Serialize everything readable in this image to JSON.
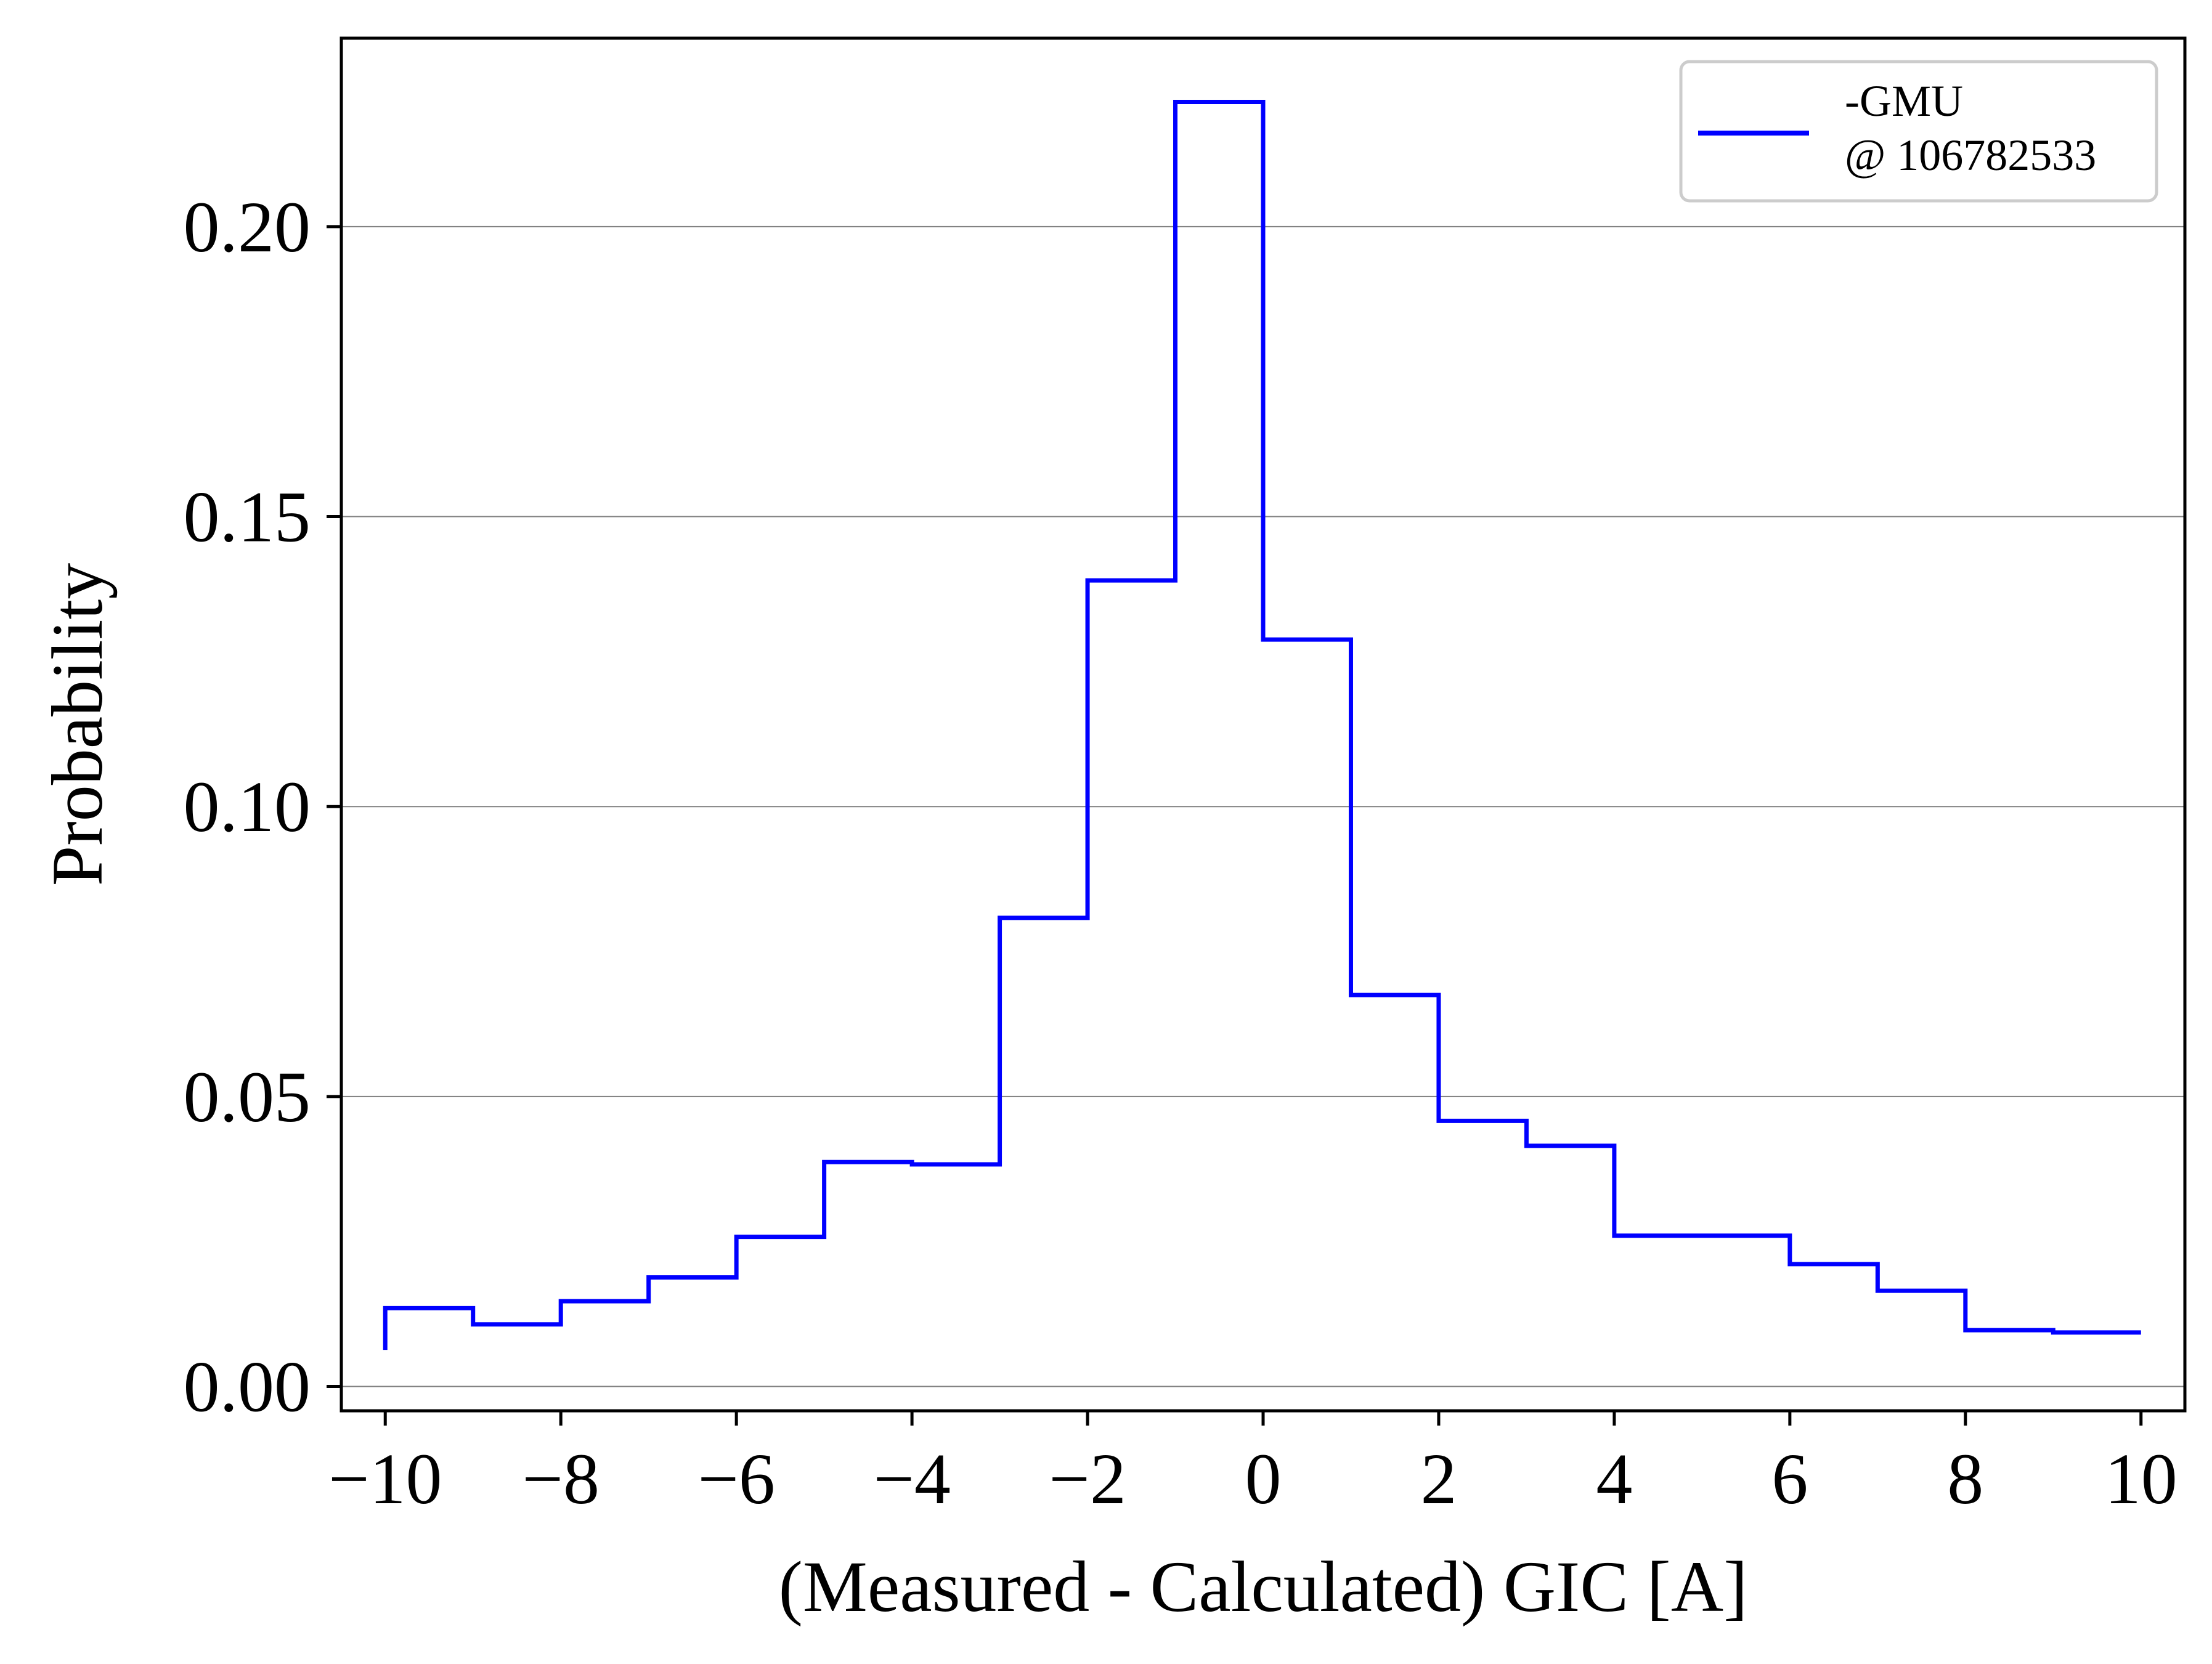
{
  "chart_data": {
    "type": "histogram-step",
    "xlabel": "(Measured - Calculated) GIC [A]",
    "ylabel": "Probability",
    "xlim": [
      -10.5,
      10.5
    ],
    "ylim": [
      -0.0042,
      0.2325
    ],
    "x_ticks": [
      -10,
      -8,
      -6,
      -4,
      -2,
      0,
      2,
      4,
      6,
      8,
      10
    ],
    "x_tick_labels": [
      "−10",
      "−8",
      "−6",
      "−4",
      "−2",
      "0",
      "2",
      "4",
      "6",
      "8",
      "10"
    ],
    "y_ticks": [
      0.0,
      0.05,
      0.1,
      0.15,
      0.2
    ],
    "y_tick_labels": [
      "0.00",
      "0.05",
      "0.10",
      "0.15",
      "0.20"
    ],
    "grid": "horizontal",
    "legend_position": "top-right",
    "series": [
      {
        "name_lines": [
          "-GMU",
          "@ 106782533"
        ],
        "color": "#0000ff",
        "bin_edges": [
          -10,
          -9,
          -8,
          -7,
          -6,
          -5,
          -4,
          -3,
          -2,
          -1,
          0,
          1,
          2,
          3,
          4,
          5,
          6,
          7,
          8,
          9,
          10
        ],
        "values": [
          0.0135,
          0.0107,
          0.0147,
          0.0188,
          0.0258,
          0.0387,
          0.0383,
          0.0808,
          0.139,
          0.2215,
          0.1288,
          0.0675,
          0.0458,
          0.0415,
          0.026,
          0.026,
          0.0211,
          0.0165,
          0.0097,
          0.0093
        ],
        "start_value": 0.0063
      }
    ]
  }
}
